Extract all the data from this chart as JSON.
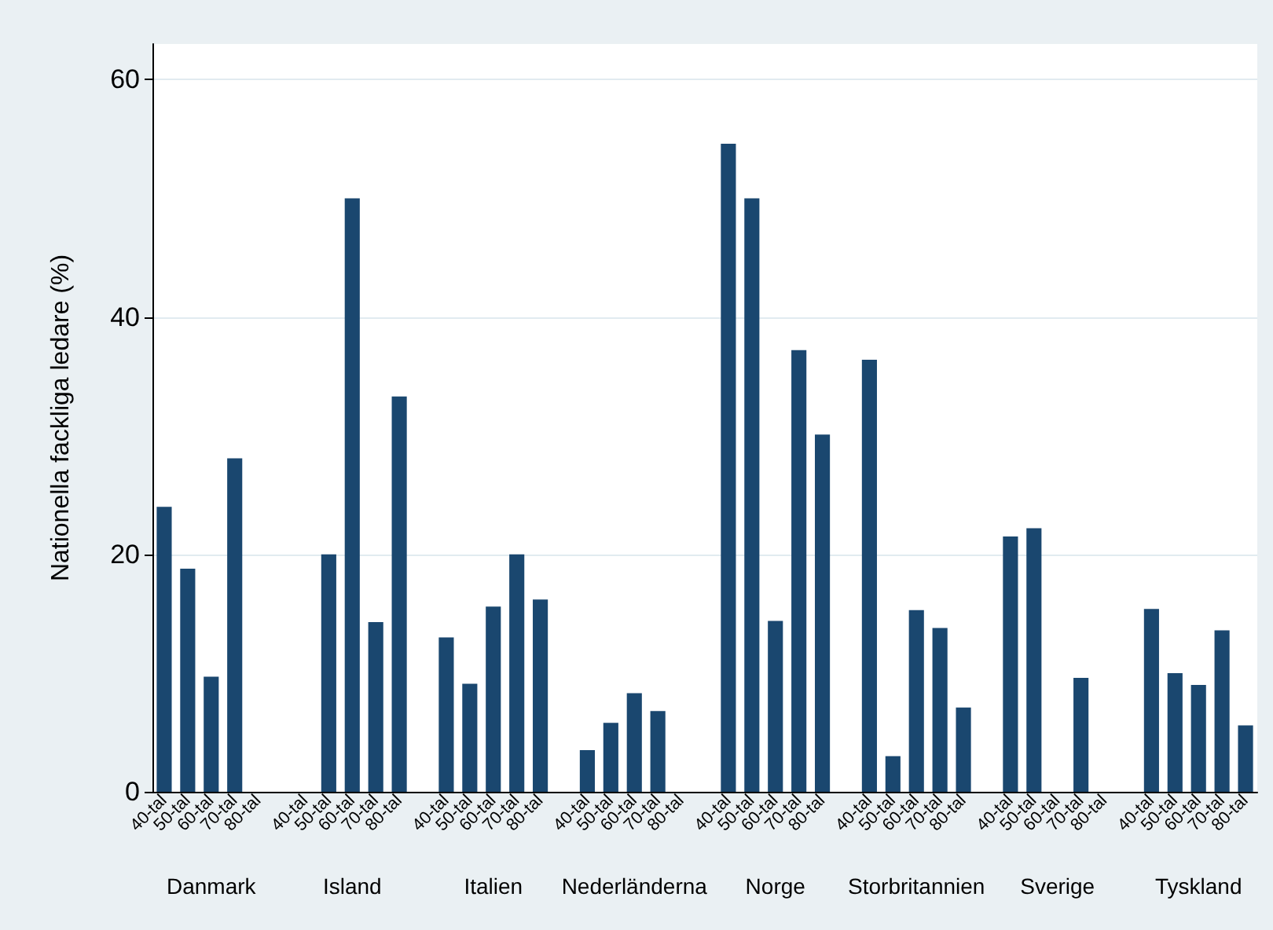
{
  "chart_data": {
    "type": "bar",
    "ylabel": "Nationella fackliga ledare (%)",
    "categories": [
      "40-tal",
      "50-tal",
      "60-tal",
      "70-tal",
      "80-tal",
      null,
      "40-tal",
      "50-tal",
      "60-tal",
      "70-tal",
      "80-tal",
      null,
      "40-tal",
      "50-tal",
      "60-tal",
      "70-tal",
      "80-tal",
      null,
      "40-tal",
      "50-tal",
      "60-tal",
      "70-tal",
      "80-tal",
      null,
      "40-tal",
      "50-tal",
      "60-tal",
      "70-tal",
      "80-tal",
      null,
      "40-tal",
      "50-tal",
      "60-tal",
      "70-tal",
      "80-tal",
      null,
      "40-tal",
      "50-tal",
      "60-tal",
      "70-tal",
      "80-tal",
      null,
      "40-tal",
      "50-tal",
      "60-tal",
      "70-tal",
      "80-tal"
    ],
    "series": [
      {
        "color": "#1a476f",
        "values": [
          24.0,
          18.8,
          9.7,
          28.1,
          null,
          null,
          null,
          20.0,
          50.0,
          14.3,
          33.3,
          null,
          13.0,
          9.1,
          15.6,
          20.0,
          16.2,
          null,
          3.5,
          5.8,
          8.3,
          6.8,
          null,
          null,
          54.6,
          50.0,
          14.4,
          37.2,
          30.1,
          null,
          36.4,
          3.0,
          15.3,
          13.8,
          7.1,
          null,
          21.5,
          22.2,
          null,
          9.6,
          null,
          null,
          15.4,
          10.0,
          9.0,
          13.6,
          5.6
        ]
      }
    ],
    "annotations": [
      "Danmark",
      "Island",
      "Italien",
      "Nederländerna",
      "Norge",
      "Storbritannien",
      "Sverige",
      "Tyskland"
    ],
    "ylim": [
      0,
      63
    ],
    "yticks": [
      0,
      20,
      40,
      60
    ],
    "grid": "y"
  }
}
